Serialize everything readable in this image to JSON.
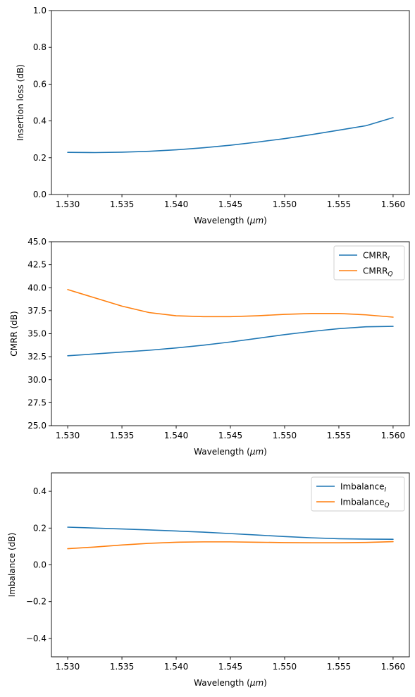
{
  "chart_data": [
    {
      "type": "line",
      "xlabel": "Wavelength (μm)",
      "ylabel": "Insertion loss (dB)",
      "xlim": [
        1.5285,
        1.5615
      ],
      "ylim": [
        0,
        1
      ],
      "xticks": [
        "1.530",
        "1.535",
        "1.540",
        "1.545",
        "1.550",
        "1.555",
        "1.560"
      ],
      "yticks": [
        "0.0",
        "0.2",
        "0.4",
        "0.6",
        "0.8",
        "1.0"
      ],
      "legend": null,
      "series": [
        {
          "color": "#1f77b4",
          "x": [
            1.53,
            1.5325,
            1.535,
            1.5375,
            1.54,
            1.5425,
            1.545,
            1.5475,
            1.55,
            1.5525,
            1.555,
            1.5575,
            1.56
          ],
          "values": [
            0.229,
            0.228,
            0.23,
            0.235,
            0.243,
            0.254,
            0.268,
            0.285,
            0.304,
            0.326,
            0.35,
            0.374,
            0.418
          ]
        }
      ]
    },
    {
      "type": "line",
      "xlabel": "Wavelength (μm)",
      "ylabel": "CMRR (dB)",
      "xlim": [
        1.5285,
        1.5615
      ],
      "ylim": [
        25,
        45
      ],
      "xticks": [
        "1.530",
        "1.535",
        "1.540",
        "1.545",
        "1.550",
        "1.555",
        "1.560"
      ],
      "yticks": [
        "25.0",
        "27.5",
        "30.0",
        "32.5",
        "35.0",
        "37.5",
        "40.0",
        "42.5",
        "45.0"
      ],
      "legend": "top-right",
      "series": [
        {
          "name": "CMRR",
          "subscript": "I",
          "color": "#1f77b4",
          "x": [
            1.53,
            1.5325,
            1.535,
            1.5375,
            1.54,
            1.5425,
            1.545,
            1.5475,
            1.55,
            1.5525,
            1.555,
            1.5575,
            1.56
          ],
          "values": [
            32.6,
            32.8,
            33.0,
            33.2,
            33.45,
            33.75,
            34.1,
            34.5,
            34.9,
            35.25,
            35.55,
            35.75,
            35.8
          ]
        },
        {
          "name": "CMRR",
          "subscript": "Q",
          "color": "#ff7f0e",
          "x": [
            1.53,
            1.5325,
            1.535,
            1.5375,
            1.54,
            1.5425,
            1.545,
            1.5475,
            1.55,
            1.5525,
            1.555,
            1.5575,
            1.56
          ],
          "values": [
            39.8,
            38.9,
            38.0,
            37.3,
            36.95,
            36.85,
            36.85,
            36.95,
            37.1,
            37.2,
            37.2,
            37.05,
            36.8
          ]
        }
      ]
    },
    {
      "type": "line",
      "xlabel": "Wavelength (μm)",
      "ylabel": "Imbalance (dB)",
      "xlim": [
        1.5285,
        1.5615
      ],
      "ylim": [
        -0.5,
        0.5
      ],
      "xticks": [
        "1.530",
        "1.535",
        "1.540",
        "1.545",
        "1.550",
        "1.555",
        "1.560"
      ],
      "yticks": [
        "−0.4",
        "−0.2",
        "0.0",
        "0.2",
        "0.4"
      ],
      "legend": "top-right",
      "series": [
        {
          "name": "Imbalance",
          "subscript": "I",
          "color": "#1f77b4",
          "x": [
            1.53,
            1.5325,
            1.535,
            1.5375,
            1.54,
            1.5425,
            1.545,
            1.5475,
            1.55,
            1.5525,
            1.555,
            1.5575,
            1.56
          ],
          "values": [
            0.205,
            0.2,
            0.195,
            0.19,
            0.184,
            0.178,
            0.17,
            0.162,
            0.154,
            0.147,
            0.142,
            0.14,
            0.139
          ]
        },
        {
          "name": "Imbalance",
          "subscript": "Q",
          "color": "#ff7f0e",
          "x": [
            1.53,
            1.5325,
            1.535,
            1.5375,
            1.54,
            1.5425,
            1.545,
            1.5475,
            1.55,
            1.5525,
            1.555,
            1.5575,
            1.56
          ],
          "values": [
            0.088,
            0.097,
            0.108,
            0.117,
            0.123,
            0.125,
            0.125,
            0.123,
            0.121,
            0.12,
            0.12,
            0.122,
            0.126
          ]
        }
      ]
    }
  ]
}
